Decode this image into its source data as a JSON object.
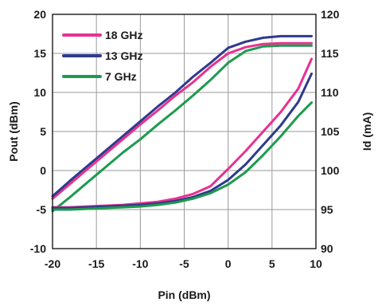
{
  "chart_data": {
    "type": "line",
    "title": "",
    "xlabel": "Pin (dBm)",
    "ylabel_left": "Pout (dBm)",
    "ylabel_right": "Id (mA)",
    "xlim": [
      -20,
      10
    ],
    "ylim_left": [
      -10,
      20
    ],
    "ylim_right": [
      90,
      120
    ],
    "x_ticks": [
      -20,
      -15,
      -10,
      -5,
      0,
      5,
      10
    ],
    "y_left_ticks": [
      -10,
      -5,
      0,
      5,
      10,
      15,
      20
    ],
    "y_right_ticks": [
      90,
      95,
      100,
      105,
      110,
      115,
      120
    ],
    "grid": true,
    "legend_position": "top-left",
    "legend": [
      "18 GHz",
      "13 GHz",
      "7 GHz"
    ],
    "series": [
      {
        "name": "18 GHz",
        "axis": "left",
        "color": "#e8318f",
        "x": [
          -20,
          -18,
          -16,
          -14,
          -12,
          -10,
          -8,
          -6,
          -4,
          -2,
          0,
          2,
          4,
          6,
          8,
          9.5
        ],
        "values": [
          -3.6,
          -1.7,
          0.2,
          2.1,
          4.0,
          5.9,
          7.7,
          9.6,
          11.3,
          13.3,
          15.0,
          15.8,
          16.2,
          16.3,
          16.3,
          16.3
        ]
      },
      {
        "name": "13 GHz",
        "axis": "left",
        "color": "#2e3a8c",
        "x": [
          -20,
          -18,
          -16,
          -14,
          -12,
          -10,
          -8,
          -6,
          -4,
          -2,
          0,
          2,
          4,
          6,
          8,
          9.5
        ],
        "values": [
          -3.3,
          -1.3,
          0.6,
          2.5,
          4.4,
          6.3,
          8.2,
          10.0,
          12.0,
          13.8,
          15.7,
          16.5,
          17.0,
          17.2,
          17.2,
          17.2
        ]
      },
      {
        "name": "7 GHz",
        "axis": "left",
        "color": "#1e9a4e",
        "x": [
          -20,
          -18,
          -16,
          -14,
          -12,
          -10,
          -8,
          -6,
          -4,
          -2,
          0,
          2,
          4,
          6,
          8,
          9.5
        ],
        "values": [
          -5.2,
          -3.4,
          -1.5,
          0.4,
          2.3,
          4.0,
          5.9,
          7.7,
          9.6,
          11.6,
          13.8,
          15.3,
          15.9,
          16.0,
          16.0,
          16.0
        ]
      },
      {
        "name": "18 GHz",
        "axis": "right",
        "color": "#e8318f",
        "x": [
          -20,
          -18,
          -16,
          -14,
          -12,
          -10,
          -8,
          -6,
          -4,
          -2,
          0,
          2,
          4,
          6,
          8,
          9.5
        ],
        "values": [
          95.3,
          95.3,
          95.4,
          95.5,
          95.6,
          95.8,
          96.0,
          96.4,
          97.0,
          98.0,
          100.2,
          102.5,
          105.0,
          107.5,
          110.5,
          114.3
        ]
      },
      {
        "name": "13 GHz",
        "axis": "right",
        "color": "#2e3a8c",
        "x": [
          -20,
          -18,
          -16,
          -14,
          -12,
          -10,
          -8,
          -6,
          -4,
          -2,
          0,
          2,
          4,
          6,
          8,
          9.5
        ],
        "values": [
          95.2,
          95.2,
          95.3,
          95.4,
          95.5,
          95.6,
          95.8,
          96.1,
          96.6,
          97.4,
          98.8,
          100.8,
          103.3,
          105.8,
          108.8,
          112.4
        ]
      },
      {
        "name": "7 GHz",
        "axis": "right",
        "color": "#1e9a4e",
        "x": [
          -20,
          -18,
          -16,
          -14,
          -12,
          -10,
          -8,
          -6,
          -4,
          -2,
          0,
          2,
          4,
          6,
          8,
          9.5
        ],
        "values": [
          95.0,
          95.0,
          95.1,
          95.2,
          95.3,
          95.4,
          95.6,
          95.9,
          96.4,
          97.1,
          98.2,
          99.8,
          102.0,
          104.4,
          107.0,
          108.7
        ]
      }
    ]
  }
}
